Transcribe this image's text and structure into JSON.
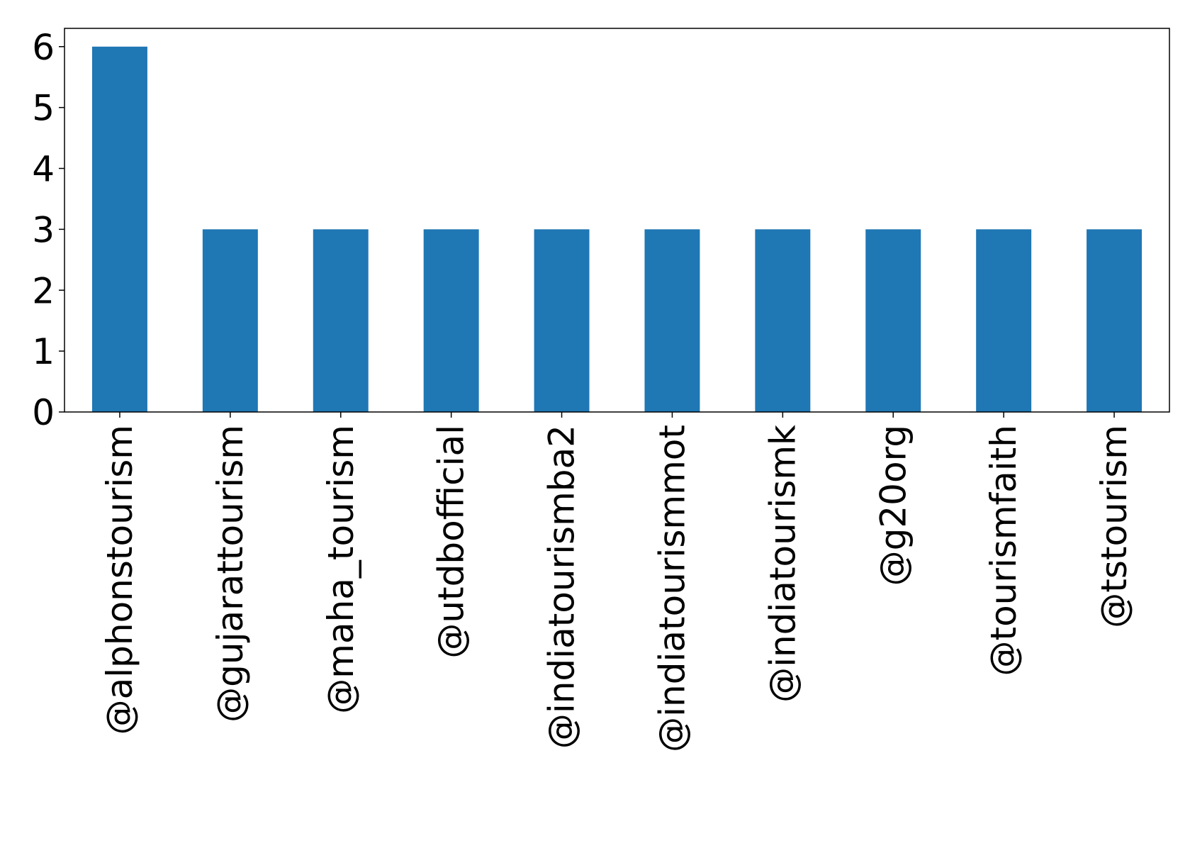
{
  "chart_data": {
    "type": "bar",
    "title": "",
    "xlabel": "",
    "ylabel": "",
    "categories": [
      "@alphonstourism",
      "@gujarattourism",
      "@maha_tourism",
      "@utdbofficial",
      "@indiatourismba2",
      "@indiatourismmot",
      "@indiatourismk",
      "@g20org",
      "@tourismfaith",
      "@tstourism"
    ],
    "values": [
      6,
      3,
      3,
      3,
      3,
      3,
      3,
      3,
      3,
      3
    ],
    "ylim": [
      0,
      6.3
    ],
    "yticks": [
      0,
      1,
      2,
      3,
      4,
      5,
      6
    ],
    "grid": false,
    "legend": "none",
    "bar_color": "#1f77b4"
  }
}
